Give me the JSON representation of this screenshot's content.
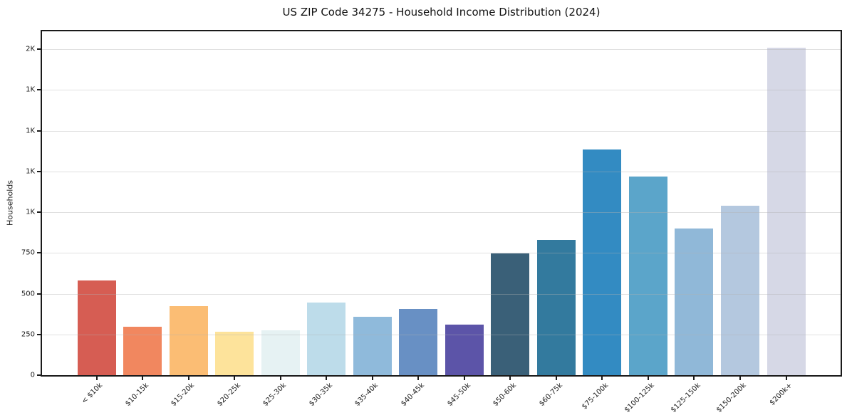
{
  "chart_data": {
    "type": "bar",
    "title": "US ZIP Code 34275 - Household Income Distribution (2024)",
    "xlabel": "",
    "ylabel": "Households",
    "categories": [
      "< $10k",
      "$10-15k",
      "$15-20k",
      "$20-25k",
      "$25-30k",
      "$30-35k",
      "$35-40k",
      "$40-45k",
      "$45-50k",
      "$50-60k",
      "$60-75k",
      "$75-100k",
      "$100-125k",
      "$125-150k",
      "$150-200k",
      "$200k+"
    ],
    "values": [
      580,
      295,
      425,
      265,
      275,
      445,
      360,
      405,
      310,
      745,
      830,
      1385,
      1220,
      900,
      1040,
      2010
    ],
    "bar_colors": [
      "#d65d53",
      "#f1875f",
      "#fbbd74",
      "#fde39b",
      "#e6f2f3",
      "#bddcea",
      "#8fbadb",
      "#6890c4",
      "#5c54a8",
      "#3a6078",
      "#337a9e",
      "#338bc2",
      "#5ba5ca",
      "#90b8d8",
      "#b4c8df",
      "#d6d8e6"
    ],
    "ylim": [
      0,
      2110
    ],
    "yticks": [
      {
        "value": 0,
        "label": "0"
      },
      {
        "value": 250,
        "label": "250"
      },
      {
        "value": 500,
        "label": "500"
      },
      {
        "value": 750,
        "label": "750"
      },
      {
        "value": 1000,
        "label": "1K"
      },
      {
        "value": 1250,
        "label": "1K"
      },
      {
        "value": 1500,
        "label": "1K"
      },
      {
        "value": 1750,
        "label": "1K"
      },
      {
        "value": 2000,
        "label": "2K"
      }
    ],
    "grid": "horizontal-only",
    "legend": "none",
    "colors": {
      "background": "#ffffff",
      "spine": "#1a1a1a",
      "gridline_on_white": "#e4e4e4",
      "tick_label": "#1a1a1a",
      "title": "#111111"
    }
  }
}
